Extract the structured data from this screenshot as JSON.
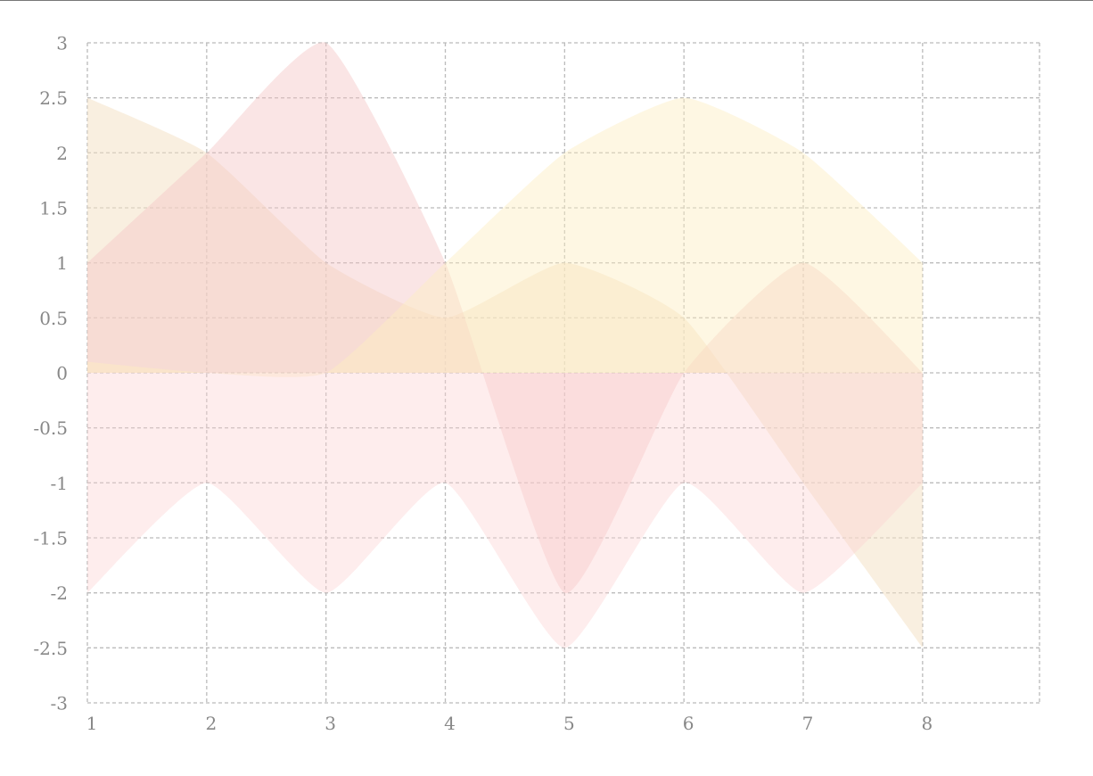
{
  "chart_data": {
    "type": "area",
    "title": "",
    "xlabel": "",
    "ylabel": "",
    "x": [
      1,
      2,
      3,
      4,
      5,
      6,
      7,
      8
    ],
    "xlim": [
      1,
      8.98
    ],
    "ylim": [
      -3,
      3
    ],
    "x_ticks": [
      "1",
      "2",
      "3",
      "4",
      "5",
      "6",
      "7",
      "8"
    ],
    "y_ticks": [
      "3",
      "2.5",
      "2",
      "1.5",
      "1",
      "0.5",
      "0",
      "-0.5",
      "-1",
      "-1.5",
      "-2",
      "-2.5",
      "-3"
    ],
    "grid": true,
    "legend": "none",
    "series": [
      {
        "color": "#f4e2c6",
        "opacity": 0.55,
        "values": [
          2.5,
          2,
          1,
          0.5,
          1,
          0.5,
          -1,
          -2.5
        ]
      },
      {
        "color": "#f5c5c5",
        "opacity": 0.45,
        "values": [
          1,
          2,
          3,
          1,
          -2,
          0,
          1,
          0
        ]
      },
      {
        "color": "#fdedc0",
        "opacity": 0.45,
        "values": [
          0.1,
          0,
          0,
          1,
          2,
          2.5,
          2,
          1
        ]
      },
      {
        "color": "#fdd3d3",
        "opacity": 0.4,
        "values": [
          -2,
          -1,
          -2,
          -1,
          -2.5,
          -1,
          -2,
          -1
        ]
      }
    ]
  }
}
